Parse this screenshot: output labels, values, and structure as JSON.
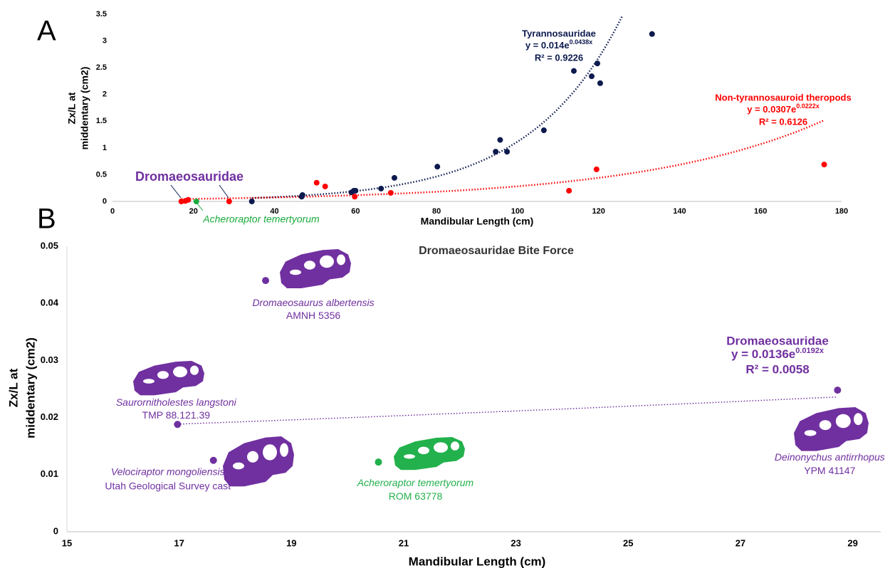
{
  "panel_labels": [
    "A",
    "B"
  ],
  "chart_data": [
    {
      "type": "scatter",
      "xlabel": "Mandibular Length (cm)",
      "ylabel": [
        "Zx/L at",
        "middentary (cm2)"
      ],
      "xlim": [
        0,
        180
      ],
      "xticks": [
        0,
        20,
        40,
        60,
        80,
        100,
        120,
        140,
        160,
        180
      ],
      "ylim": [
        0,
        3.5
      ],
      "yticks": [
        0,
        0.5,
        1,
        1.5,
        2,
        2.5,
        3,
        3.5
      ],
      "annotation": "Dromaeosauridae",
      "series": [
        {
          "name": "Tyrannosauridae",
          "color": "#0c1a4e",
          "x": [
            34.4,
            46.7,
            46.9,
            59,
            59.6,
            60,
            66.3,
            69.6,
            80.2,
            94.6,
            95.7,
            97.4,
            106.5,
            113.9,
            118.3,
            119.7,
            120.4,
            133.2
          ],
          "values": [
            0,
            0.09,
            0.12,
            0.17,
            0.2,
            0.2,
            0.24,
            0.44,
            0.65,
            0.93,
            1.15,
            0.93,
            1.33,
            2.44,
            2.34,
            2.58,
            2.21,
            3.13
          ],
          "trend": {
            "a": 0.014,
            "b": 0.0438
          },
          "equation": {
            "base": "y = 0.014e",
            "exponent": "0.0438x",
            "r2": "R² = 0.9226"
          }
        },
        {
          "name": "Non-tyrannosauroid theropods",
          "color": "#ff0000",
          "x": [
            17,
            18,
            18.7,
            28.8,
            50.4,
            52.5,
            59.8,
            68.7,
            112.7,
            119.5,
            175.7
          ],
          "values": [
            0,
            0.01,
            0.03,
            0,
            0.35,
            0.28,
            0.09,
            0.16,
            0.2,
            0.6,
            0.69
          ],
          "trend": {
            "a": 0.0307,
            "b": 0.0222
          },
          "equation": {
            "base": "y = 0.0307e",
            "exponent": "0.0222x",
            "r2": "R² = 0.6126"
          }
        },
        {
          "name": "Acheroraptor temertyorum",
          "color": "#1aab3c",
          "x": [
            20.7
          ],
          "values": [
            0
          ]
        }
      ]
    },
    {
      "type": "scatter",
      "title": "Dromaeosauridae Bite Force",
      "xlabel": "Mandibular Length (cm)",
      "ylabel": [
        "Zx/L at",
        "middentary (cm2)"
      ],
      "xlim": [
        15,
        29.5
      ],
      "xticks": [
        15,
        17,
        19,
        21,
        23,
        25,
        27,
        29
      ],
      "ylim": [
        0,
        0.05
      ],
      "yticks": [
        0,
        0.01,
        0.02,
        0.03,
        0.04,
        0.05
      ],
      "series": [
        {
          "name": "Dromaeosauridae",
          "color": "#7030a0",
          "x": [
            18.54,
            16.97,
            17.61,
            28.73
          ],
          "values": [
            0.044,
            0.0188,
            0.0125,
            0.0248
          ],
          "labels": [
            "Dromaeosaurus albertensis",
            "Saurornitholestes langstoni",
            "Velociraptor mongoliensis",
            "Deinonychus antirrhopus"
          ],
          "specimens": [
            "AMNH 5356",
            "TMP 88.121.39",
            "Utah Geological Survey cast",
            "YPM 41147"
          ],
          "trend": {
            "a": 0.0136,
            "b": 0.0192
          },
          "equation": {
            "base": "y = 0.0136e",
            "exponent": "0.0192x",
            "r2": "R² = 0.0058"
          }
        },
        {
          "name": "Acheroraptor temertyorum",
          "color": "#22b14c",
          "x": [
            20.55
          ],
          "values": [
            0.0122
          ],
          "specimens": [
            "ROM 63778"
          ]
        }
      ]
    }
  ]
}
